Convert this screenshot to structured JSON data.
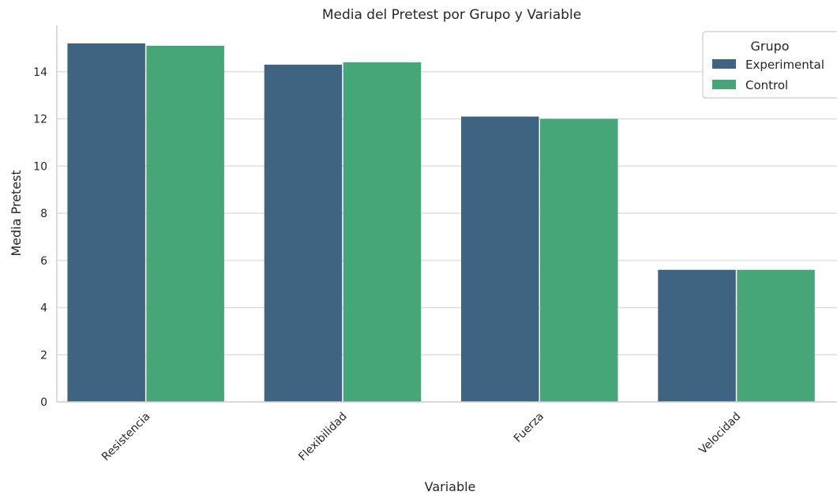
{
  "chart_data": {
    "type": "bar",
    "title": "Media del Pretest por Grupo y Variable",
    "xlabel": "Variable",
    "ylabel": "Media Pretest",
    "categories": [
      "Resistencia",
      "Flexibilidad",
      "Fuerza",
      "Velocidad"
    ],
    "series": [
      {
        "name": "Experimental",
        "color": "#3e6482",
        "values": [
          15.2,
          14.3,
          12.1,
          5.6
        ]
      },
      {
        "name": "Control",
        "color": "#46a677",
        "values": [
          15.1,
          14.4,
          12.0,
          5.6
        ]
      }
    ],
    "yticks": [
      0,
      2,
      4,
      6,
      8,
      10,
      12,
      14
    ],
    "ylim": [
      0,
      15.97
    ],
    "grid": "y",
    "legend": {
      "title": "Grupo",
      "placement": "top-right"
    }
  }
}
